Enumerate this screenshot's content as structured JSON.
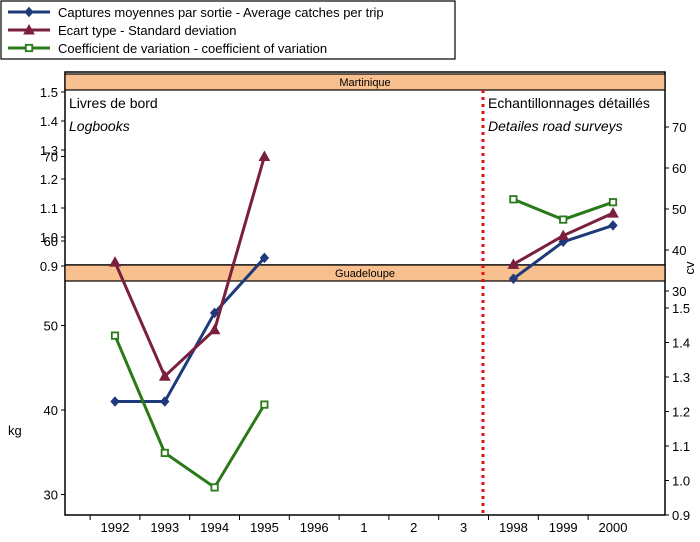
{
  "chart_data": {
    "type": "line",
    "legend": {
      "placement": "top-left",
      "entries": [
        {
          "key": "average_catches",
          "label": "Captures moyennes par sortie - Average catches per trip",
          "color": "#1f3a7a",
          "marker": "diamond"
        },
        {
          "key": "standard_deviation",
          "label": "Ecart type - Standard deviation",
          "color": "#7a1f3d",
          "marker": "triangle"
        },
        {
          "key": "coefficient_of_variation",
          "label": "Coefficient de variation - coefficient of variation",
          "color": "#2a7a1a",
          "marker": "square"
        }
      ]
    },
    "categories": [
      "1992",
      "1993",
      "1994",
      "1995",
      "1996",
      "1",
      "2",
      "3",
      "1998",
      "1999",
      "2000"
    ],
    "annotations": {
      "logbooks_fr": "Livres de bord",
      "logbooks_en": "Logbooks",
      "surveys_fr": "Echantillonnages détaillés",
      "surveys_en": "Detailes road surveys"
    },
    "panels": [
      {
        "key": "martinique",
        "title": "Martinique",
        "left_axis": {
          "ticks": [
            "0.9",
            "1.0",
            "1.1",
            "1.2",
            "1.3",
            "1.4",
            "1.5"
          ],
          "range": [
            0.9,
            1.5
          ]
        },
        "right_axis": {
          "title": "cv",
          "ticks": [
            "30",
            "40",
            "50",
            "60",
            "70"
          ],
          "range": [
            25,
            75
          ]
        },
        "series": [
          {
            "key": "average_catches",
            "axis": "right",
            "points": [
              {
                "x": "1998",
                "y": 33
              },
              {
                "x": "1999",
                "y": 42
              },
              {
                "x": "2000",
                "y": 46
              }
            ]
          },
          {
            "key": "standard_deviation",
            "axis": "right",
            "points": [
              {
                "x": "1998",
                "y": 36.5
              },
              {
                "x": "1999",
                "y": 43.5
              },
              {
                "x": "2000",
                "y": 49
              }
            ]
          },
          {
            "key": "coefficient_of_variation",
            "axis": "left",
            "points": [
              {
                "x": "1998",
                "y": 1.13
              },
              {
                "x": "1999",
                "y": 1.06
              },
              {
                "x": "2000",
                "y": 1.12
              }
            ]
          }
        ]
      },
      {
        "key": "guadeloupe",
        "title": "Guadeloupe",
        "left_axis": {
          "title": "kg",
          "ticks": [
            "30",
            "40",
            "50",
            "60",
            "70"
          ],
          "range": [
            25,
            75
          ]
        },
        "right_axis": {
          "ticks": [
            "0.9",
            "1.0",
            "1.1",
            "1.2",
            "1.3",
            "1.4",
            "1.5"
          ],
          "range": [
            0.9,
            1.5
          ]
        },
        "series": [
          {
            "key": "average_catches",
            "axis": "left",
            "points": [
              {
                "x": "1992",
                "y": 41
              },
              {
                "x": "1993",
                "y": 41
              },
              {
                "x": "1994",
                "y": 51.5
              },
              {
                "x": "1995",
                "y": 58
              }
            ]
          },
          {
            "key": "standard_deviation",
            "axis": "left",
            "points": [
              {
                "x": "1992",
                "y": 57.5
              },
              {
                "x": "1993",
                "y": 44
              },
              {
                "x": "1994",
                "y": 49.5
              },
              {
                "x": "1995",
                "y": 70
              }
            ]
          },
          {
            "key": "coefficient_of_variation",
            "axis": "right",
            "points": [
              {
                "x": "1992",
                "y": 1.42
              },
              {
                "x": "1993",
                "y": 1.08
              },
              {
                "x": "1994",
                "y": 0.98
              },
              {
                "x": "1995",
                "y": 1.22
              }
            ]
          }
        ]
      }
    ],
    "divider": {
      "between": [
        "3",
        "1998"
      ],
      "style": "dotted",
      "color": "#e01010"
    },
    "colors": {
      "panel_header": "#f7c08e"
    }
  }
}
